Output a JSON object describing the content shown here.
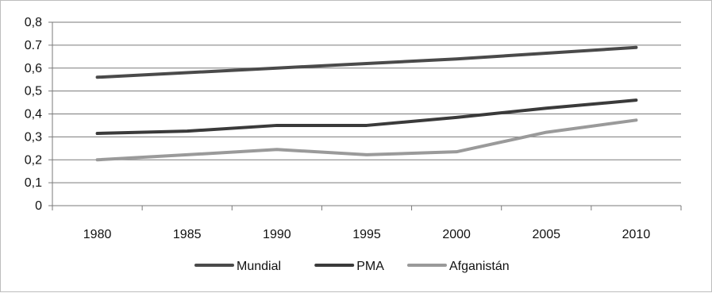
{
  "chart_data": {
    "type": "line",
    "title": "",
    "xlabel": "",
    "ylabel": "",
    "categories": [
      "1980",
      "1985",
      "1990",
      "1995",
      "2000",
      "2005",
      "2010"
    ],
    "y_tick_labels": [
      "0",
      "0,1",
      "0,2",
      "0,3",
      "0,4",
      "0,5",
      "0,6",
      "0.7",
      "0,8"
    ],
    "ylim": [
      0,
      0.8
    ],
    "y_ticks": [
      0,
      0.1,
      0.2,
      0.3,
      0.4,
      0.5,
      0.6,
      0.7,
      0.8
    ],
    "grid": true,
    "legend_position": "bottom",
    "series": [
      {
        "name": "Mundial",
        "color": "#4a4a4a",
        "values": [
          0.56,
          0.58,
          0.6,
          0.62,
          0.64,
          0.665,
          0.69
        ]
      },
      {
        "name": "PMA",
        "color": "#3a3a3a",
        "values": [
          0.315,
          0.325,
          0.35,
          0.35,
          0.385,
          0.425,
          0.46
        ]
      },
      {
        "name": "Afganistán",
        "color": "#9a9a9a",
        "values": [
          0.2,
          0.222,
          0.245,
          0.222,
          0.235,
          0.32,
          0.373
        ]
      }
    ]
  }
}
